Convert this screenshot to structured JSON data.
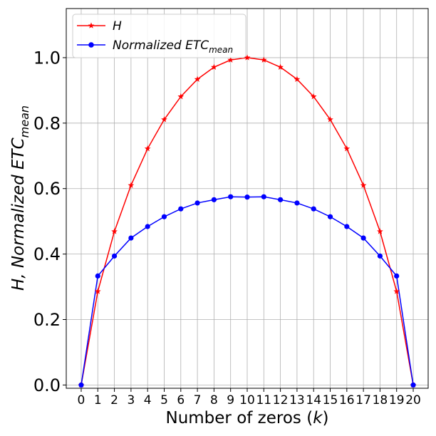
{
  "chart_data": {
    "type": "line",
    "xlabel": {
      "text": "Number of zeros (",
      "var": "k",
      "close": ")"
    },
    "ylabel": {
      "prefix": "H, Normalized ETC",
      "subscript": "mean"
    },
    "x": [
      0,
      1,
      2,
      3,
      4,
      5,
      6,
      7,
      8,
      9,
      10,
      11,
      12,
      13,
      14,
      15,
      16,
      17,
      18,
      19,
      20
    ],
    "xticks": [
      "0",
      "1",
      "2",
      "3",
      "4",
      "5",
      "6",
      "7",
      "8",
      "9",
      "10",
      "11",
      "12",
      "13",
      "14",
      "15",
      "16",
      "17",
      "18",
      "19",
      "20"
    ],
    "yticks": [
      "0.0",
      "0.2",
      "0.4",
      "0.6",
      "0.8",
      "1.0"
    ],
    "ytick_values": [
      0.0,
      0.2,
      0.4,
      0.6,
      0.8,
      1.0
    ],
    "xlim": [
      -0.9,
      20.9
    ],
    "ylim": [
      -0.01,
      1.15
    ],
    "grid": true,
    "legend_position": "top-left",
    "series": [
      {
        "name": "H",
        "color": "#ff0000",
        "marker": "star",
        "values": [
          0.0,
          0.286,
          0.469,
          0.61,
          0.722,
          0.811,
          0.881,
          0.934,
          0.971,
          0.993,
          1.0,
          0.993,
          0.971,
          0.934,
          0.881,
          0.811,
          0.722,
          0.61,
          0.469,
          0.286,
          0.0
        ]
      },
      {
        "name_prefix": "Normalized ETC",
        "name_subscript": "mean",
        "color": "#0000ff",
        "marker": "circle",
        "values": [
          0.0,
          0.333,
          0.394,
          0.449,
          0.484,
          0.514,
          0.538,
          0.556,
          0.566,
          0.575,
          0.574,
          0.575,
          0.566,
          0.556,
          0.538,
          0.514,
          0.484,
          0.449,
          0.394,
          0.333,
          0.0
        ]
      }
    ]
  }
}
